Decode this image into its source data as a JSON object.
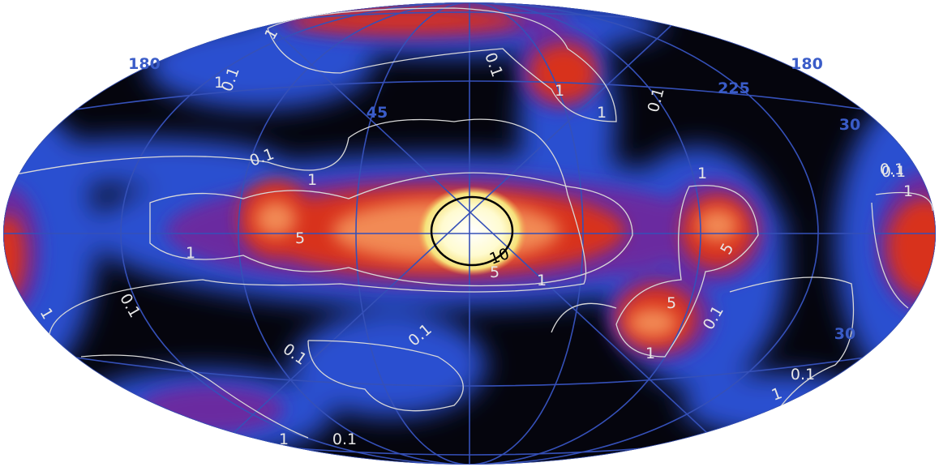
{
  "grid_labels": [
    "180",
    "45",
    "225",
    "180",
    "30",
    "30"
  ],
  "contour_labels": [
    "1",
    "0.1",
    "1",
    "0.1",
    "0.1",
    "1",
    "1",
    "0.1",
    "0.1",
    "1",
    "1",
    "5",
    "10",
    "5",
    "1",
    "1",
    "5",
    "5",
    "1",
    "0.1",
    "0.1",
    "1",
    "0.1",
    "1",
    "0.1",
    "0.1",
    "0.1",
    "1",
    "1",
    "0.1"
  ]
}
